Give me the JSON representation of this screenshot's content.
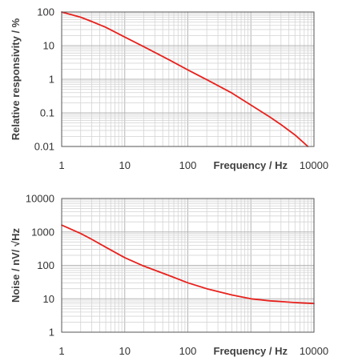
{
  "colors": {
    "curve": "#e8211d"
  },
  "chart_data": [
    {
      "type": "line",
      "xlabel": "Frequency / Hz",
      "ylabel": "Relative responsivity / %",
      "xscale": "log",
      "yscale": "log",
      "xlim": [
        1,
        10000
      ],
      "ylim": [
        0.01,
        100
      ],
      "x_ticks": [
        "1",
        "10",
        "100",
        "10000"
      ],
      "y_ticks": [
        "100",
        "10",
        "1",
        "0.1",
        "0.01"
      ],
      "grid": true,
      "series": [
        {
          "x": [
            1,
            2,
            3,
            5,
            10,
            20,
            50,
            100,
            200,
            500,
            1000,
            2000,
            3000,
            5000,
            8000
          ],
          "y": [
            100,
            70,
            52,
            35,
            18,
            9.3,
            3.8,
            1.9,
            0.97,
            0.39,
            0.17,
            0.075,
            0.045,
            0.022,
            0.01
          ]
        }
      ]
    },
    {
      "type": "line",
      "xlabel": "Frequency / Hz",
      "ylabel": "Noise / nV/ √Hz",
      "xscale": "log",
      "yscale": "log",
      "xlim": [
        1,
        10000
      ],
      "ylim": [
        1,
        10000
      ],
      "x_ticks": [
        "1",
        "10",
        "100",
        "10000"
      ],
      "y_ticks": [
        "10000",
        "1000",
        "100",
        "10",
        "1"
      ],
      "grid": true,
      "series": [
        {
          "x": [
            1,
            2,
            3,
            5,
            10,
            20,
            50,
            100,
            200,
            500,
            1000,
            2000,
            5000,
            10000
          ],
          "y": [
            1600,
            900,
            600,
            350,
            170,
            95,
            50,
            30,
            20,
            13,
            10,
            8.7,
            7.7,
            7.2
          ]
        }
      ]
    }
  ]
}
